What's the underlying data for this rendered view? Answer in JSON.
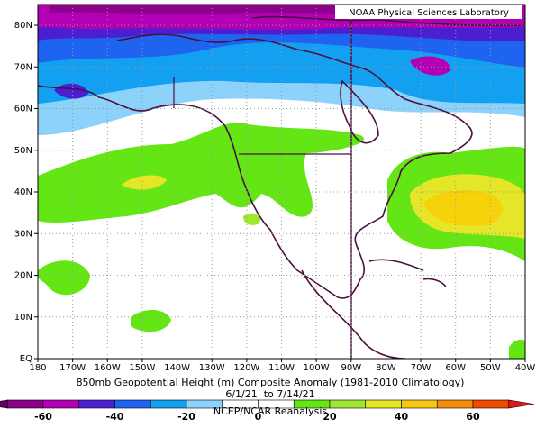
{
  "map": {
    "credit": "NOAA Physical Sciences Laboratory",
    "title": "850mb Geopotential Height (m) Composite Anomaly (1981-2010 Climatology)",
    "dates": "6/1/21  to 7/14/21",
    "source": "NCEP/NCAR Reanalysis",
    "lat_labels": [
      "EQ",
      "10N",
      "20N",
      "30N",
      "40N",
      "50N",
      "60N",
      "70N",
      "80N"
    ],
    "lon_labels": [
      "180",
      "170W",
      "160W",
      "150W",
      "140W",
      "130W",
      "120W",
      "110W",
      "100W",
      "90W",
      "80W",
      "70W",
      "60W",
      "50W",
      "40W"
    ],
    "colorbar": {
      "ticks": [
        -60,
        -40,
        -20,
        0,
        20,
        40,
        60
      ],
      "colors": [
        "#8c008c",
        "#b400b4",
        "#4b1fd0",
        "#1e64f0",
        "#14a0f0",
        "#8cd2fa",
        "#ffffff",
        "#ffffff",
        "#64e614",
        "#a0e632",
        "#e6e628",
        "#f5c814",
        "#f58c0a",
        "#f04b00"
      ],
      "low_color": "#640064",
      "high_color": "#e61414"
    }
  }
}
